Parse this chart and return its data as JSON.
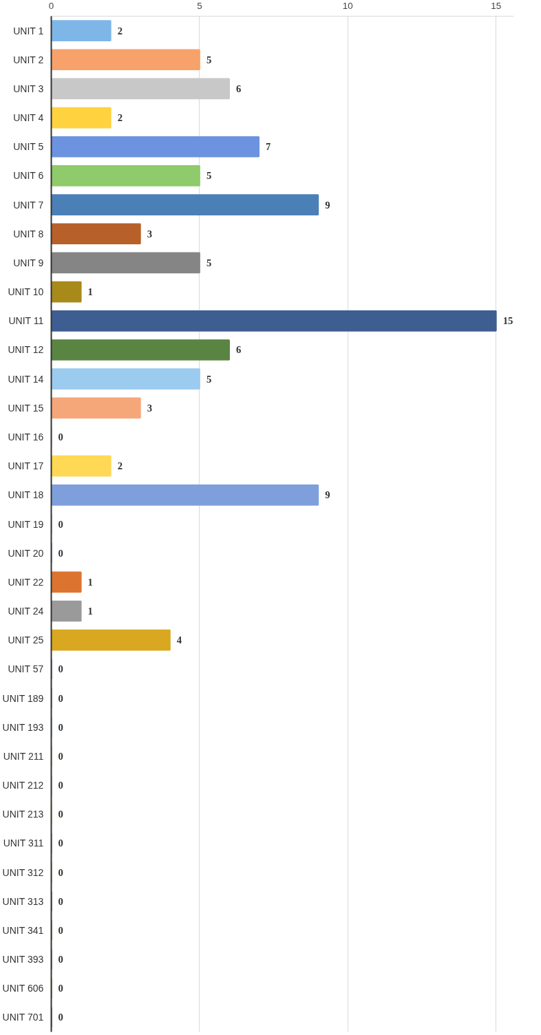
{
  "chart_data": {
    "type": "bar",
    "orientation": "horizontal",
    "data_labels": true,
    "grid": "x",
    "categories": [
      "UNIT 1",
      "UNIT 2",
      "UNIT 3",
      "UNIT 4",
      "UNIT 5",
      "UNIT 6",
      "UNIT 7",
      "UNIT 8",
      "UNIT 9",
      "UNIT 10",
      "UNIT 11",
      "UNIT 12",
      "UNIT 14",
      "UNIT 15",
      "UNIT 16",
      "UNIT 17",
      "UNIT 18",
      "UNIT 19",
      "UNIT 20",
      "UNIT 22",
      "UNIT 24",
      "UNIT 25",
      "UNIT 57",
      "UNIT 189",
      "UNIT 193",
      "UNIT 211",
      "UNIT 212",
      "UNIT 213",
      "UNIT 311",
      "UNIT 312",
      "UNIT 313",
      "UNIT 341",
      "UNIT 393",
      "UNIT 606",
      "UNIT 701"
    ],
    "values": [
      2,
      5,
      6,
      2,
      7,
      5,
      9,
      3,
      5,
      1,
      15,
      6,
      5,
      3,
      0,
      2,
      9,
      0,
      0,
      1,
      1,
      4,
      0,
      0,
      0,
      0,
      0,
      0,
      0,
      0,
      0,
      0,
      0,
      0,
      0
    ],
    "colors": [
      "#7fb6e8",
      "#f7a26a",
      "#c8c8c8",
      "#ffd23f",
      "#6b93e0",
      "#8fcb6a",
      "#4a80b6",
      "#b8602a",
      "#858585",
      "#a88a1a",
      "#3e5e92",
      "#5a8442",
      "#9ccbf0",
      "#f5a77a",
      "#c2c2c2",
      "#ffd855",
      "#7f9fdc",
      "#93c97a",
      "#3a7ac0",
      "#dc7430",
      "#9a9a9a",
      "#d9a820",
      "#3a5aa0",
      "#5a8a39",
      "#7fb6e8",
      "#f4a06a",
      "#b7b7b7",
      "#ffcd33",
      "#698ed0",
      "#8cc168",
      "#264478",
      "#9e480e",
      "#636363",
      "#997300",
      "#264478"
    ],
    "xlim": [
      0,
      15.6
    ],
    "xticks": [
      0,
      5,
      10,
      15
    ]
  }
}
